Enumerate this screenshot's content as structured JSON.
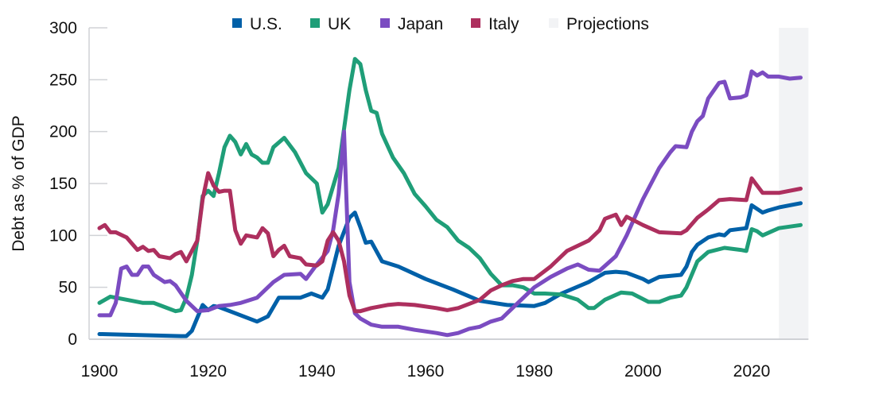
{
  "chart_data": {
    "type": "line",
    "title": "",
    "xlabel": "",
    "ylabel": "Debt as % of GDP",
    "xlim": [
      1900,
      2030
    ],
    "ylim": [
      0,
      300
    ],
    "x_ticks": [
      1900,
      1920,
      1940,
      1960,
      1980,
      2000,
      2020
    ],
    "y_ticks": [
      0,
      50,
      100,
      150,
      200,
      250,
      300
    ],
    "grid": false,
    "legend_placement": "top",
    "projections": {
      "label": "Projections",
      "start": 2025,
      "end": 2030,
      "color": "#f2f3f5"
    },
    "series": [
      {
        "name": "U.S.",
        "color": "#0060a8",
        "points": [
          [
            1900,
            5
          ],
          [
            1915,
            3
          ],
          [
            1916,
            3
          ],
          [
            1917,
            8
          ],
          [
            1919,
            33
          ],
          [
            1920,
            28
          ],
          [
            1921,
            32
          ],
          [
            1922,
            31
          ],
          [
            1925,
            25
          ],
          [
            1929,
            17
          ],
          [
            1931,
            22
          ],
          [
            1933,
            40
          ],
          [
            1935,
            40
          ],
          [
            1937,
            40
          ],
          [
            1939,
            44
          ],
          [
            1941,
            40
          ],
          [
            1942,
            48
          ],
          [
            1944,
            90
          ],
          [
            1946,
            117
          ],
          [
            1947,
            122
          ],
          [
            1948,
            108
          ],
          [
            1949,
            93
          ],
          [
            1950,
            94
          ],
          [
            1952,
            75
          ],
          [
            1955,
            70
          ],
          [
            1960,
            58
          ],
          [
            1965,
            48
          ],
          [
            1970,
            37
          ],
          [
            1975,
            33
          ],
          [
            1980,
            32
          ],
          [
            1982,
            35
          ],
          [
            1985,
            44
          ],
          [
            1990,
            55
          ],
          [
            1993,
            64
          ],
          [
            1995,
            65
          ],
          [
            1997,
            64
          ],
          [
            2000,
            58
          ],
          [
            2001,
            55
          ],
          [
            2003,
            60
          ],
          [
            2007,
            62
          ],
          [
            2008,
            70
          ],
          [
            2009,
            84
          ],
          [
            2010,
            91
          ],
          [
            2012,
            98
          ],
          [
            2014,
            101
          ],
          [
            2015,
            100
          ],
          [
            2016,
            105
          ],
          [
            2019,
            107
          ],
          [
            2020,
            129
          ],
          [
            2022,
            122
          ],
          [
            2023,
            124
          ],
          [
            2025,
            127
          ],
          [
            2029,
            131
          ]
        ]
      },
      {
        "name": "UK",
        "color": "#1f9e78",
        "points": [
          [
            1900,
            35
          ],
          [
            1902,
            41
          ],
          [
            1905,
            38
          ],
          [
            1908,
            35
          ],
          [
            1910,
            35
          ],
          [
            1912,
            31
          ],
          [
            1914,
            27
          ],
          [
            1915,
            28
          ],
          [
            1916,
            40
          ],
          [
            1917,
            62
          ],
          [
            1918,
            95
          ],
          [
            1919,
            138
          ],
          [
            1920,
            143
          ],
          [
            1921,
            138
          ],
          [
            1922,
            160
          ],
          [
            1923,
            185
          ],
          [
            1924,
            196
          ],
          [
            1925,
            190
          ],
          [
            1926,
            178
          ],
          [
            1927,
            188
          ],
          [
            1928,
            178
          ],
          [
            1929,
            175
          ],
          [
            1930,
            170
          ],
          [
            1931,
            170
          ],
          [
            1932,
            185
          ],
          [
            1934,
            194
          ],
          [
            1936,
            180
          ],
          [
            1938,
            160
          ],
          [
            1940,
            150
          ],
          [
            1941,
            122
          ],
          [
            1942,
            130
          ],
          [
            1944,
            165
          ],
          [
            1946,
            240
          ],
          [
            1947,
            270
          ],
          [
            1948,
            265
          ],
          [
            1949,
            240
          ],
          [
            1950,
            220
          ],
          [
            1951,
            218
          ],
          [
            1952,
            198
          ],
          [
            1954,
            175
          ],
          [
            1956,
            160
          ],
          [
            1958,
            140
          ],
          [
            1960,
            128
          ],
          [
            1962,
            115
          ],
          [
            1964,
            108
          ],
          [
            1966,
            95
          ],
          [
            1968,
            88
          ],
          [
            1970,
            78
          ],
          [
            1972,
            63
          ],
          [
            1974,
            52
          ],
          [
            1976,
            52
          ],
          [
            1978,
            50
          ],
          [
            1980,
            44
          ],
          [
            1982,
            44
          ],
          [
            1985,
            43
          ],
          [
            1988,
            38
          ],
          [
            1990,
            30
          ],
          [
            1991,
            30
          ],
          [
            1993,
            38
          ],
          [
            1996,
            45
          ],
          [
            1998,
            44
          ],
          [
            2001,
            36
          ],
          [
            2003,
            36
          ],
          [
            2005,
            40
          ],
          [
            2007,
            42
          ],
          [
            2008,
            50
          ],
          [
            2010,
            75
          ],
          [
            2012,
            84
          ],
          [
            2015,
            88
          ],
          [
            2018,
            86
          ],
          [
            2019,
            85
          ],
          [
            2020,
            106
          ],
          [
            2021,
            104
          ],
          [
            2022,
            100
          ],
          [
            2025,
            107
          ],
          [
            2029,
            110
          ]
        ]
      },
      {
        "name": "Japan",
        "color": "#7b4cc1",
        "points": [
          [
            1900,
            23
          ],
          [
            1902,
            23
          ],
          [
            1903,
            35
          ],
          [
            1904,
            68
          ],
          [
            1905,
            70
          ],
          [
            1906,
            62
          ],
          [
            1907,
            62
          ],
          [
            1908,
            70
          ],
          [
            1909,
            70
          ],
          [
            1910,
            62
          ],
          [
            1912,
            55
          ],
          [
            1913,
            56
          ],
          [
            1914,
            52
          ],
          [
            1916,
            37
          ],
          [
            1918,
            27
          ],
          [
            1920,
            28
          ],
          [
            1922,
            32
          ],
          [
            1924,
            33
          ],
          [
            1926,
            35
          ],
          [
            1929,
            40
          ],
          [
            1932,
            55
          ],
          [
            1934,
            62
          ],
          [
            1937,
            63
          ],
          [
            1938,
            58
          ],
          [
            1940,
            72
          ],
          [
            1942,
            85
          ],
          [
            1943,
            105
          ],
          [
            1944,
            140
          ],
          [
            1945,
            200
          ],
          [
            1946,
            55
          ],
          [
            1947,
            25
          ],
          [
            1948,
            20
          ],
          [
            1950,
            14
          ],
          [
            1952,
            12
          ],
          [
            1955,
            12
          ],
          [
            1958,
            9
          ],
          [
            1962,
            6
          ],
          [
            1964,
            4
          ],
          [
            1966,
            6
          ],
          [
            1968,
            10
          ],
          [
            1970,
            12
          ],
          [
            1972,
            17
          ],
          [
            1974,
            20
          ],
          [
            1976,
            30
          ],
          [
            1978,
            40
          ],
          [
            1980,
            50
          ],
          [
            1983,
            60
          ],
          [
            1986,
            68
          ],
          [
            1988,
            72
          ],
          [
            1990,
            67
          ],
          [
            1992,
            66
          ],
          [
            1995,
            80
          ],
          [
            1997,
            100
          ],
          [
            2000,
            135
          ],
          [
            2003,
            165
          ],
          [
            2005,
            180
          ],
          [
            2006,
            186
          ],
          [
            2008,
            185
          ],
          [
            2009,
            200
          ],
          [
            2010,
            210
          ],
          [
            2011,
            215
          ],
          [
            2012,
            232
          ],
          [
            2014,
            247
          ],
          [
            2015,
            248
          ],
          [
            2016,
            232
          ],
          [
            2018,
            233
          ],
          [
            2019,
            235
          ],
          [
            2020,
            258
          ],
          [
            2021,
            254
          ],
          [
            2022,
            257
          ],
          [
            2023,
            253
          ],
          [
            2025,
            253
          ],
          [
            2027,
            251
          ],
          [
            2029,
            252
          ]
        ]
      },
      {
        "name": "Italy",
        "color": "#ad2f5e",
        "points": [
          [
            1900,
            107
          ],
          [
            1901,
            110
          ],
          [
            1902,
            103
          ],
          [
            1903,
            103
          ],
          [
            1905,
            98
          ],
          [
            1906,
            92
          ],
          [
            1907,
            86
          ],
          [
            1908,
            89
          ],
          [
            1909,
            85
          ],
          [
            1910,
            86
          ],
          [
            1911,
            80
          ],
          [
            1913,
            78
          ],
          [
            1914,
            82
          ],
          [
            1915,
            84
          ],
          [
            1916,
            75
          ],
          [
            1918,
            95
          ],
          [
            1919,
            135
          ],
          [
            1920,
            160
          ],
          [
            1921,
            148
          ],
          [
            1922,
            142
          ],
          [
            1923,
            143
          ],
          [
            1924,
            143
          ],
          [
            1925,
            105
          ],
          [
            1926,
            92
          ],
          [
            1927,
            100
          ],
          [
            1929,
            98
          ],
          [
            1930,
            107
          ],
          [
            1931,
            102
          ],
          [
            1932,
            80
          ],
          [
            1933,
            86
          ],
          [
            1934,
            90
          ],
          [
            1935,
            80
          ],
          [
            1937,
            78
          ],
          [
            1938,
            72
          ],
          [
            1940,
            71
          ],
          [
            1941,
            75
          ],
          [
            1942,
            95
          ],
          [
            1943,
            103
          ],
          [
            1944,
            95
          ],
          [
            1945,
            75
          ],
          [
            1946,
            42
          ],
          [
            1947,
            27
          ],
          [
            1948,
            27
          ],
          [
            1950,
            30
          ],
          [
            1953,
            33
          ],
          [
            1955,
            34
          ],
          [
            1958,
            33
          ],
          [
            1962,
            30
          ],
          [
            1964,
            28
          ],
          [
            1966,
            30
          ],
          [
            1968,
            34
          ],
          [
            1970,
            38
          ],
          [
            1972,
            47
          ],
          [
            1974,
            52
          ],
          [
            1976,
            56
          ],
          [
            1978,
            58
          ],
          [
            1980,
            58
          ],
          [
            1983,
            70
          ],
          [
            1986,
            85
          ],
          [
            1990,
            95
          ],
          [
            1992,
            105
          ],
          [
            1993,
            116
          ],
          [
            1995,
            120
          ],
          [
            1996,
            110
          ],
          [
            1997,
            118
          ],
          [
            2000,
            110
          ],
          [
            2003,
            103
          ],
          [
            2007,
            102
          ],
          [
            2008,
            105
          ],
          [
            2010,
            117
          ],
          [
            2012,
            125
          ],
          [
            2014,
            134
          ],
          [
            2016,
            135
          ],
          [
            2019,
            134
          ],
          [
            2020,
            155
          ],
          [
            2021,
            148
          ],
          [
            2022,
            141
          ],
          [
            2025,
            141
          ],
          [
            2029,
            145
          ]
        ]
      }
    ]
  }
}
